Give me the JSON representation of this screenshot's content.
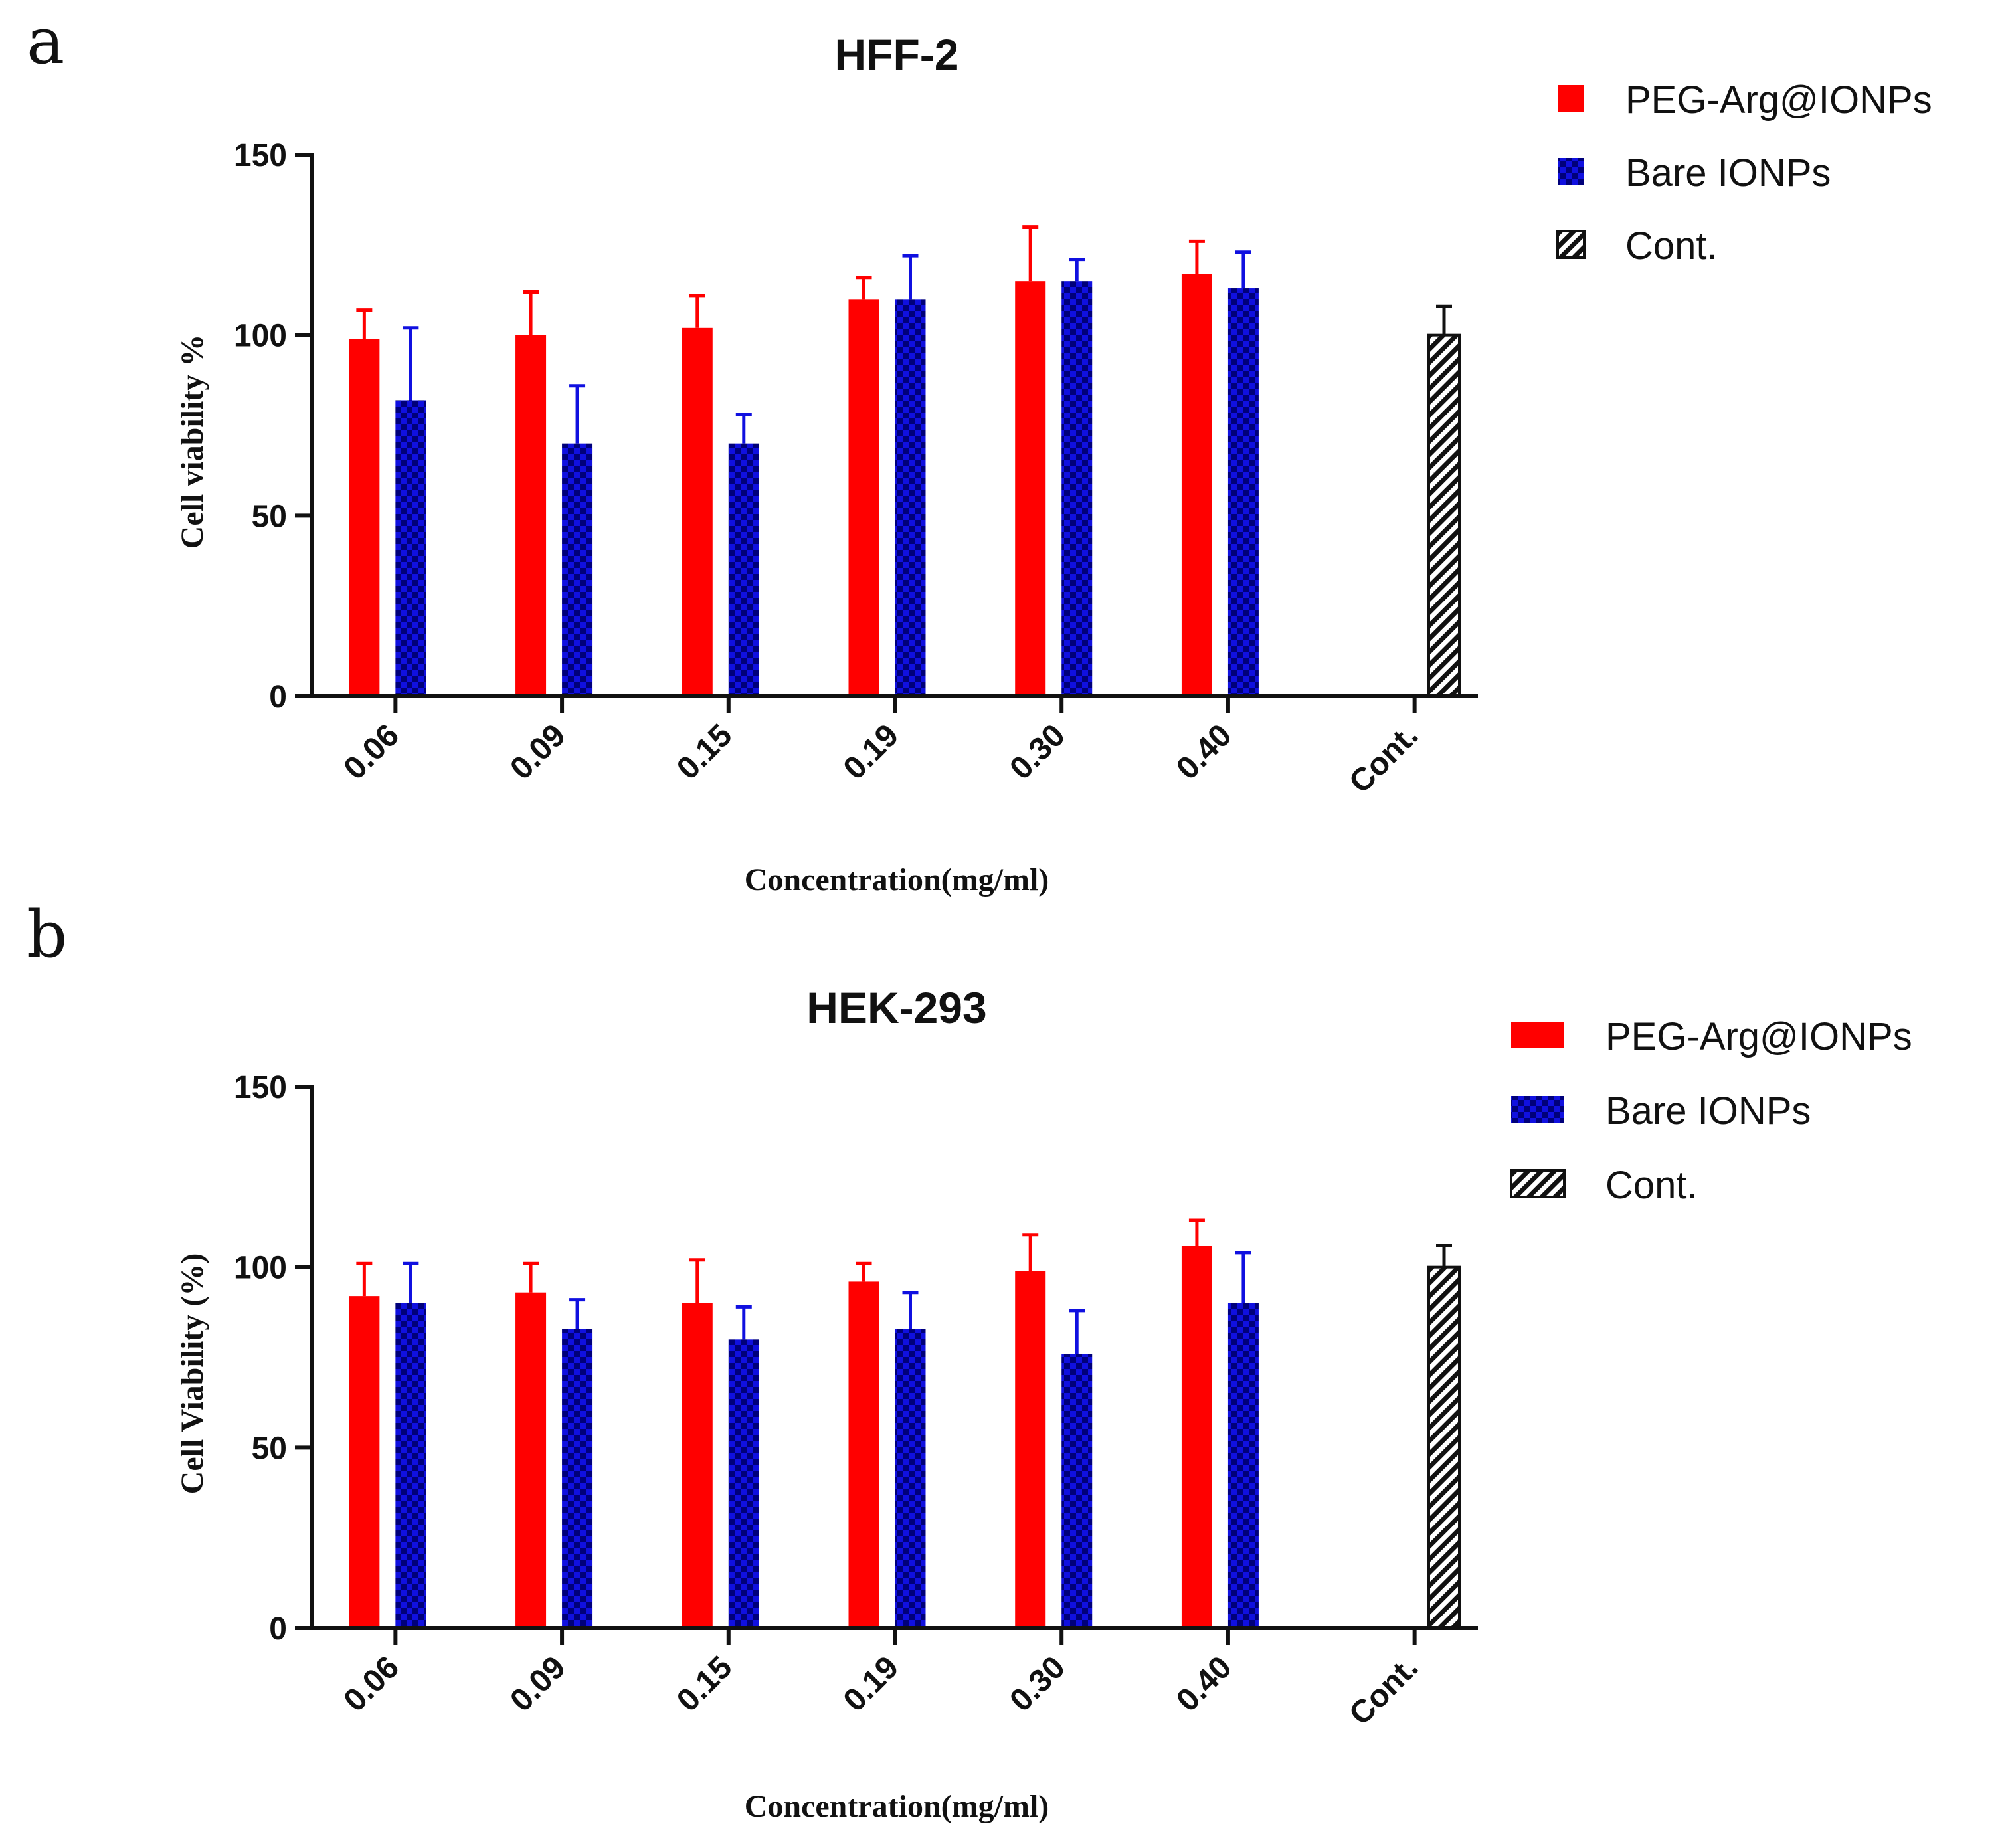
{
  "colors": {
    "peg": "#ff0000",
    "bare": "#1010e0",
    "bare_dark": "#00007a",
    "cont": "#111111",
    "axis": "#111111"
  },
  "chart_data": [
    {
      "panel_label": "a",
      "type": "bar",
      "title": "HFF-2",
      "xlabel": "Concentration(mg/ml)",
      "ylabel": "Cell viability %",
      "ylim": [
        0,
        150
      ],
      "yticks": [
        "0",
        "50",
        "100",
        "150"
      ],
      "categories": [
        "0.06",
        "0.09",
        "0.15",
        "0.19",
        "0.30",
        "0.40",
        "Cont."
      ],
      "series": [
        {
          "name": "PEG-Arg@IONPs",
          "key": "peg",
          "values": [
            99,
            100,
            102,
            110,
            115,
            117,
            null
          ],
          "errors": [
            8,
            12,
            9,
            6,
            15,
            9,
            null
          ]
        },
        {
          "name": "Bare IONPs",
          "key": "bare",
          "values": [
            82,
            70,
            70,
            110,
            115,
            113,
            null
          ],
          "errors": [
            20,
            16,
            8,
            12,
            6,
            10,
            null
          ]
        },
        {
          "name": "Cont.",
          "key": "cont",
          "values": [
            null,
            null,
            null,
            null,
            null,
            null,
            100
          ],
          "errors": [
            null,
            null,
            null,
            null,
            null,
            null,
            8
          ]
        }
      ],
      "legend_position": "top-right"
    },
    {
      "panel_label": "b",
      "type": "bar",
      "title": "HEK-293",
      "xlabel": "Concentration(mg/ml)",
      "ylabel": "Cell Viability (%)",
      "ylim": [
        0,
        150
      ],
      "yticks": [
        "0",
        "50",
        "100",
        "150"
      ],
      "categories": [
        "0.06",
        "0.09",
        "0.15",
        "0.19",
        "0.30",
        "0.40",
        "Cont."
      ],
      "series": [
        {
          "name": "PEG-Arg@IONPs",
          "key": "peg",
          "values": [
            92,
            93,
            90,
            96,
            99,
            106,
            null
          ],
          "errors": [
            9,
            8,
            12,
            5,
            10,
            7,
            null
          ]
        },
        {
          "name": "Bare IONPs",
          "key": "bare",
          "values": [
            90,
            83,
            80,
            83,
            76,
            90,
            null
          ],
          "errors": [
            11,
            8,
            9,
            10,
            12,
            14,
            null
          ]
        },
        {
          "name": "Cont.",
          "key": "cont",
          "values": [
            null,
            null,
            null,
            null,
            null,
            null,
            100
          ],
          "errors": [
            null,
            null,
            null,
            null,
            null,
            null,
            6
          ]
        }
      ],
      "legend_position": "top-right"
    }
  ]
}
